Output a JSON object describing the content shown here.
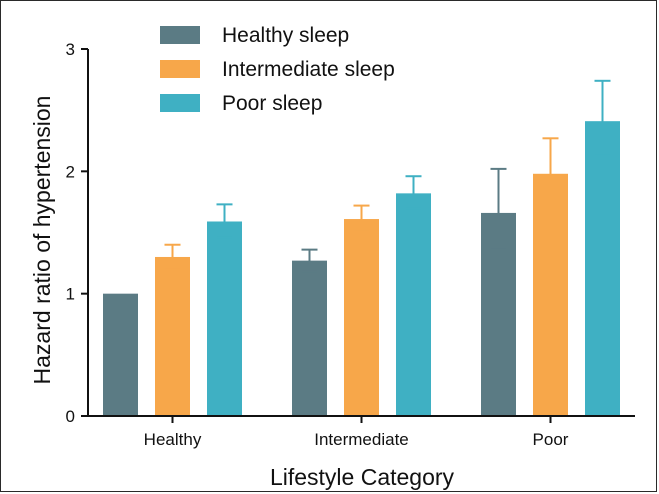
{
  "chart_data": {
    "type": "bar",
    "title": "",
    "xlabel": "Lifestyle Category",
    "ylabel": "Hazard ratio of hypertension",
    "categories": [
      "Healthy",
      "Intermediate",
      "Poor"
    ],
    "ylim": [
      0,
      3
    ],
    "yticks": [
      0,
      1,
      2,
      3
    ],
    "grid": false,
    "legend_position": "top-left",
    "series": [
      {
        "name": "Healthy sleep",
        "color": "#5b7b84",
        "values": [
          1.0,
          1.27,
          1.66
        ],
        "ci_low": [
          null,
          1.18,
          1.36
        ],
        "ci_high": [
          null,
          1.36,
          2.02
        ]
      },
      {
        "name": "Intermediate sleep",
        "color": "#f7a74a",
        "values": [
          1.3,
          1.61,
          1.98
        ],
        "ci_low": [
          1.2,
          1.51,
          1.72
        ],
        "ci_high": [
          1.4,
          1.72,
          2.27
        ]
      },
      {
        "name": "Poor sleep",
        "color": "#3fb0c3",
        "values": [
          1.59,
          1.82,
          2.41
        ],
        "ci_low": [
          1.46,
          1.7,
          2.13
        ],
        "ci_high": [
          1.73,
          1.96,
          2.74
        ]
      }
    ]
  }
}
